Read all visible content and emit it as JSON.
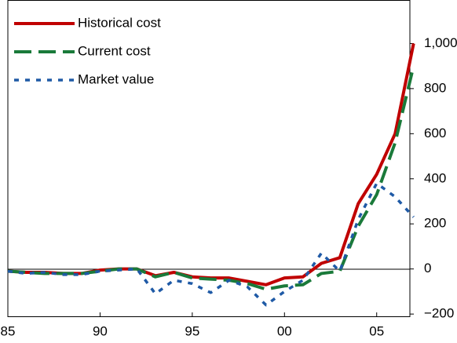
{
  "chart_data": {
    "type": "line",
    "x": [
      1985,
      1986,
      1987,
      1988,
      1989,
      1990,
      1991,
      1992,
      1993,
      1994,
      1995,
      1996,
      1997,
      1998,
      1999,
      2000,
      2001,
      2002,
      2003,
      2004,
      2005,
      2006,
      2007
    ],
    "series": [
      {
        "name": "Historical cost",
        "color": "#c00000",
        "dash": "solid",
        "values": [
          -10,
          -15,
          -15,
          -20,
          -20,
          -5,
          0,
          0,
          -30,
          -15,
          -35,
          -40,
          -40,
          -55,
          -70,
          -40,
          -35,
          25,
          50,
          290,
          420,
          600,
          1000
        ]
      },
      {
        "name": "Current cost",
        "color": "#1a7a3a",
        "dash": "dashed",
        "values": [
          -10,
          -15,
          -20,
          -20,
          -20,
          -10,
          0,
          0,
          -35,
          -15,
          -40,
          -45,
          -50,
          -65,
          -90,
          -75,
          -70,
          -20,
          -10,
          190,
          330,
          560,
          900
        ]
      },
      {
        "name": "Market value",
        "color": "#1f5aa6",
        "dash": "dotted",
        "values": [
          -10,
          -20,
          -15,
          -25,
          -25,
          -10,
          -5,
          0,
          -110,
          -50,
          -65,
          -105,
          -50,
          -80,
          -160,
          -100,
          -50,
          70,
          -10,
          220,
          380,
          320,
          230
        ]
      }
    ],
    "xlim": [
      1985,
      2006.8
    ],
    "xticks": [
      {
        "value": 1985,
        "label": "85"
      },
      {
        "value": 1990,
        "label": "90"
      },
      {
        "value": 1995,
        "label": "95"
      },
      {
        "value": 2000,
        "label": "00"
      },
      {
        "value": 2005,
        "label": "05"
      }
    ],
    "ylim": [
      -210,
      1193
    ],
    "yticks": [
      {
        "value": -200,
        "label": "−200"
      },
      0,
      200,
      400,
      600,
      800,
      {
        "value": 1000,
        "label": "1,000"
      }
    ],
    "grid": false,
    "legend": "upper left"
  }
}
